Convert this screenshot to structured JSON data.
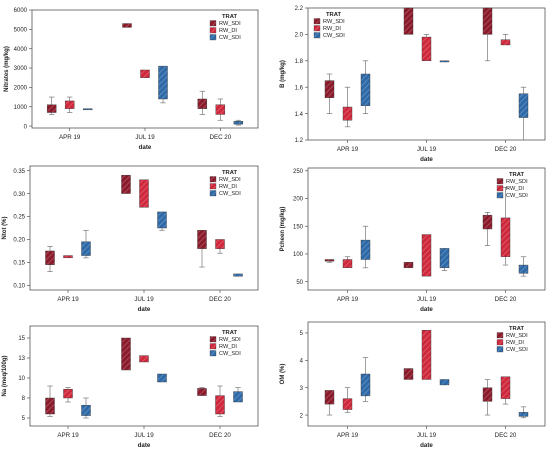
{
  "colors": {
    "rw_sdi": "#8b1a2b",
    "rw_di": "#d0283c",
    "cw_sdi": "#2e6aa8"
  },
  "chart_data": [
    {
      "type": "box",
      "ylabel": "Nitrates (mg/kg)",
      "xlabel": "date",
      "categories": [
        "APR 19",
        "JUL 19",
        "DEC 20"
      ],
      "ylim": [
        -100,
        6000
      ],
      "yticks": [
        0,
        1000,
        2000,
        3000,
        4000,
        5000,
        6000
      ],
      "legend": {
        "title": "TRAT",
        "items": [
          "RW_SDI",
          "RW_DI",
          "CW_SDI"
        ],
        "position": "top-right"
      },
      "series": [
        {
          "name": "RW_SDI",
          "boxes": [
            [
              600,
              700,
              1100,
              1500
            ],
            [
              5100,
              5100,
              5300,
              5300
            ],
            [
              600,
              900,
              1400,
              1800
            ]
          ]
        },
        {
          "name": "RW_DI",
          "boxes": [
            [
              700,
              900,
              1300,
              1500
            ],
            [
              2500,
              2500,
              2900,
              2900
            ],
            [
              300,
              600,
              1100,
              1400
            ]
          ]
        },
        {
          "name": "CW_SDI",
          "boxes": [
            [
              850,
              850,
              900,
              900
            ],
            [
              1200,
              1400,
              3100,
              3100
            ],
            [
              50,
              100,
              250,
              300
            ]
          ]
        }
      ]
    },
    {
      "type": "box",
      "ylabel": "B (mg/kg)",
      "xlabel": "date",
      "categories": [
        "APR 19",
        "JUL 19",
        "DEC 20"
      ],
      "ylim": [
        1.2,
        2.2
      ],
      "yticks": [
        1.2,
        1.4,
        1.6,
        1.8,
        2.0,
        2.2
      ],
      "legend": {
        "title": "TRAT",
        "items": [
          "RW_SDI",
          "RW_DI",
          "CW_SDI"
        ],
        "position": "top-left"
      },
      "series": [
        {
          "name": "RW_SDI",
          "boxes": [
            [
              1.4,
              1.52,
              1.65,
              1.7
            ],
            [
              2.0,
              2.0,
              2.2,
              2.2
            ],
            [
              1.8,
              2.0,
              2.2,
              2.2
            ]
          ]
        },
        {
          "name": "RW_DI",
          "boxes": [
            [
              1.3,
              1.35,
              1.45,
              1.6
            ],
            [
              1.8,
              1.8,
              1.98,
              2.0
            ],
            [
              1.92,
              1.92,
              1.96,
              2.0
            ]
          ]
        },
        {
          "name": "CW_SDI",
          "boxes": [
            [
              1.4,
              1.46,
              1.7,
              1.8
            ],
            [
              1.8,
              1.8,
              1.8,
              1.8
            ],
            [
              1.2,
              1.37,
              1.55,
              1.6
            ]
          ]
        }
      ]
    },
    {
      "type": "box",
      "ylabel": "Ntot (%)",
      "xlabel": "date",
      "categories": [
        "APR 19",
        "JUL 19",
        "DEC 20"
      ],
      "ylim": [
        0.09,
        0.36
      ],
      "yticks": [
        0.1,
        0.15,
        0.2,
        0.25,
        0.3,
        0.35
      ],
      "legend": {
        "title": "TRAT",
        "items": [
          "RW_SDI",
          "RW_DI",
          "CW_SDI"
        ],
        "position": "top-right"
      },
      "series": [
        {
          "name": "RW_SDI",
          "boxes": [
            [
              0.13,
              0.145,
              0.175,
              0.185
            ],
            [
              0.3,
              0.3,
              0.34,
              0.34
            ],
            [
              0.14,
              0.18,
              0.22,
              0.22
            ]
          ]
        },
        {
          "name": "RW_DI",
          "boxes": [
            [
              0.16,
              0.16,
              0.165,
              0.165
            ],
            [
              0.27,
              0.27,
              0.33,
              0.33
            ],
            [
              0.17,
              0.18,
              0.2,
              0.2
            ]
          ]
        },
        {
          "name": "CW_SDI",
          "boxes": [
            [
              0.16,
              0.165,
              0.195,
              0.22
            ],
            [
              0.22,
              0.225,
              0.26,
              0.26
            ],
            [
              0.12,
              0.12,
              0.125,
              0.125
            ]
          ]
        }
      ]
    },
    {
      "type": "box",
      "ylabel": "Pcheen (mg/kg)",
      "xlabel": "date",
      "categories": [
        "APR 19",
        "JUL 19",
        "DEC 20"
      ],
      "ylim": [
        35,
        255
      ],
      "yticks": [
        50,
        100,
        150,
        200,
        250
      ],
      "legend": {
        "title": "TRAT",
        "items": [
          "RW_SDI",
          "RW_DI",
          "CW_SDI"
        ],
        "position": "top-right"
      },
      "series": [
        {
          "name": "RW_SDI",
          "boxes": [
            [
              85,
              87,
              90,
              90
            ],
            [
              75,
              75,
              85,
              85
            ],
            [
              115,
              145,
              170,
              175
            ]
          ]
        },
        {
          "name": "RW_DI",
          "boxes": [
            [
              75,
              75,
              90,
              95
            ],
            [
              60,
              60,
              135,
              135
            ],
            [
              80,
              95,
              165,
              220
            ]
          ]
        },
        {
          "name": "CW_SDI",
          "boxes": [
            [
              75,
              90,
              125,
              150
            ],
            [
              70,
              75,
              110,
              110
            ],
            [
              60,
              65,
              80,
              95
            ]
          ]
        }
      ]
    },
    {
      "type": "box",
      "ylabel": "Na (meq/100g)",
      "xlabel": "date",
      "categories": [
        "APR 19",
        "JUL 19",
        "DEC 20"
      ],
      "ylim": [
        4,
        16.5
      ],
      "yticks": [
        5.0,
        7.5,
        10.0,
        12.5,
        15.0
      ],
      "legend": {
        "title": "TRAT",
        "items": [
          "RW_SDI",
          "RW_DI",
          "CW_SDI"
        ],
        "position": "top-right"
      },
      "series": [
        {
          "name": "RW_SDI",
          "boxes": [
            [
              5.2,
              5.5,
              7.5,
              9.0
            ],
            [
              11.0,
              11.0,
              15.0,
              15.0
            ],
            [
              7.8,
              7.8,
              8.7,
              8.8
            ]
          ]
        },
        {
          "name": "RW_DI",
          "boxes": [
            [
              7.0,
              7.5,
              8.6,
              8.8
            ],
            [
              12.0,
              12.0,
              12.8,
              12.8
            ],
            [
              5.2,
              5.5,
              7.8,
              9.0
            ]
          ]
        },
        {
          "name": "CW_SDI",
          "boxes": [
            [
              5.0,
              5.3,
              6.6,
              7.5
            ],
            [
              9.5,
              9.5,
              10.5,
              10.5
            ],
            [
              7.0,
              7.0,
              8.3,
              8.8
            ]
          ]
        }
      ]
    },
    {
      "type": "box",
      "ylabel": "OM (%)",
      "xlabel": "date",
      "categories": [
        "APR 19",
        "JUL 19",
        "DEC 20"
      ],
      "ylim": [
        1.6,
        5.4
      ],
      "yticks": [
        2,
        3,
        4,
        5
      ],
      "legend": {
        "title": "TRAT",
        "items": [
          "RW_SDI",
          "RW_DI",
          "CW_SDI"
        ],
        "position": "top-right"
      },
      "series": [
        {
          "name": "RW_SDI",
          "boxes": [
            [
              2.0,
              2.4,
              2.9,
              2.9
            ],
            [
              3.3,
              3.3,
              3.7,
              3.7
            ],
            [
              2.0,
              2.5,
              3.0,
              3.3
            ]
          ]
        },
        {
          "name": "RW_DI",
          "boxes": [
            [
              2.1,
              2.2,
              2.6,
              3.0
            ],
            [
              3.3,
              3.3,
              5.1,
              5.1
            ],
            [
              2.4,
              2.6,
              3.4,
              3.4
            ]
          ]
        },
        {
          "name": "CW_SDI",
          "boxes": [
            [
              2.5,
              2.7,
              3.5,
              4.1
            ],
            [
              3.1,
              3.1,
              3.3,
              3.3
            ],
            [
              1.9,
              1.95,
              2.1,
              2.3
            ]
          ]
        }
      ]
    }
  ]
}
